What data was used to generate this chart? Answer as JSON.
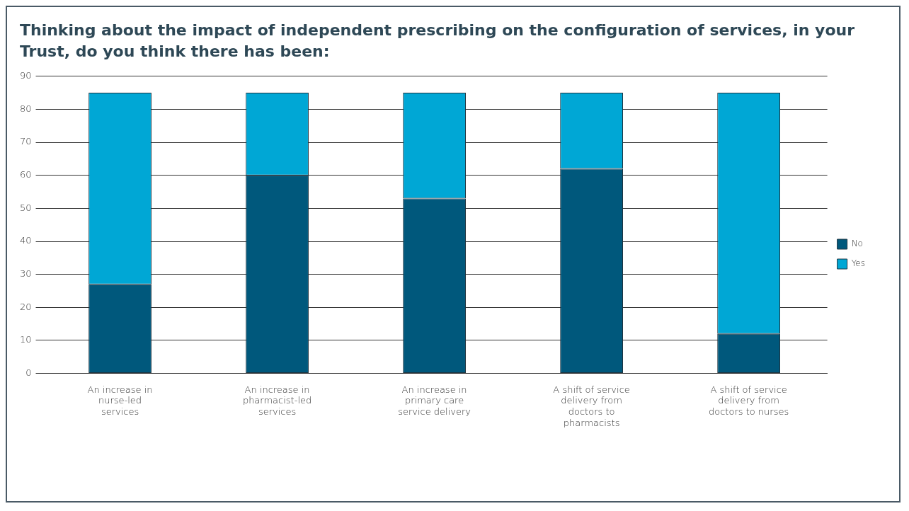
{
  "chart_data": {
    "type": "bar",
    "title": "Thinking about the impact of independent prescribing on the configuration of services, in your Trust, do you think there has been:",
    "categories": [
      "An increase in nurse-led services",
      "An increase in pharmacist-led services",
      "An increase in primary care service delivery",
      "A shift of service delivery from doctors to pharmacists",
      "A shift of service delivery from doctors to nurses"
    ],
    "series": [
      {
        "name": "No",
        "color": "#00587c",
        "values": [
          27,
          60,
          53,
          62,
          12
        ]
      },
      {
        "name": "Yes",
        "color": "#00a7d5",
        "values": [
          58,
          25,
          32,
          23,
          73
        ]
      }
    ],
    "stacked": true,
    "ylim": [
      0,
      90
    ],
    "yticks": [
      0,
      10,
      20,
      30,
      40,
      50,
      60,
      70,
      80,
      90
    ],
    "grid": "y",
    "legend": "right"
  }
}
